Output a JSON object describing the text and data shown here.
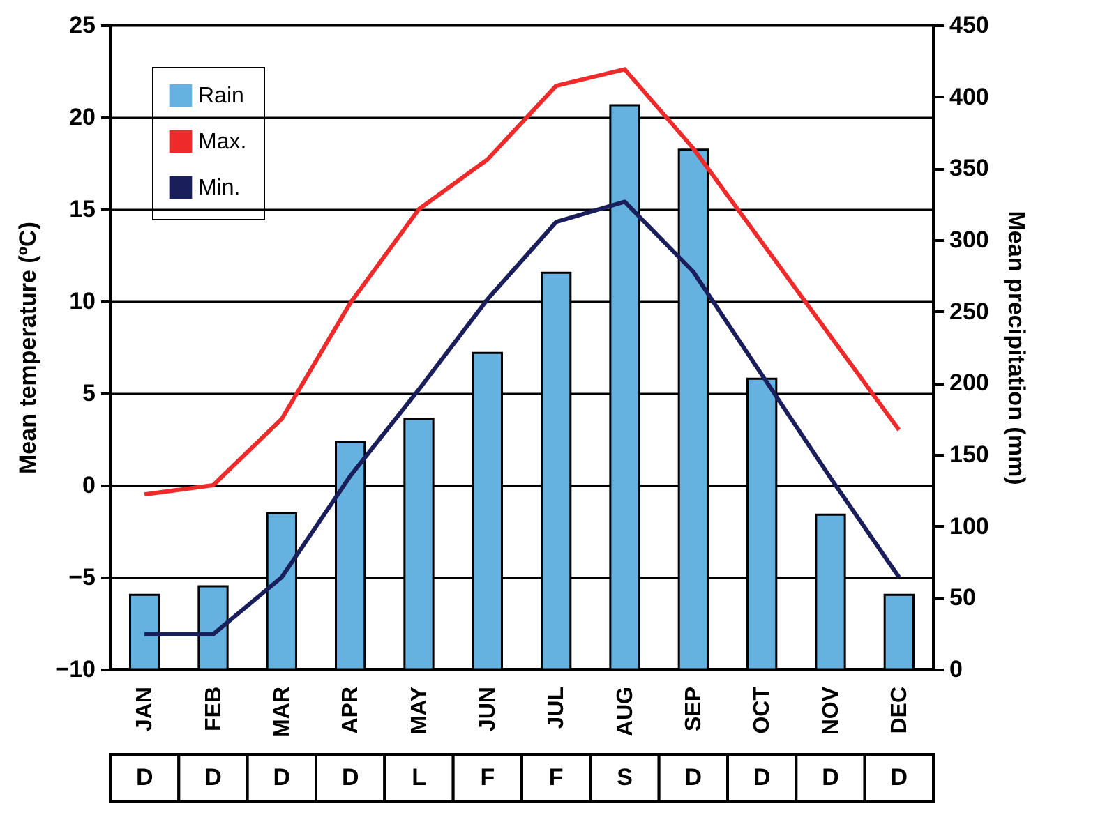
{
  "chart_data": {
    "type": "bar",
    "ylabel": "Mean temperature (ºC)",
    "y2label": "Mean precipitation (mm)",
    "categories": [
      "JAN",
      "FEB",
      "MAR",
      "APR",
      "MAY",
      "JUN",
      "JUL",
      "AUG",
      "SEP",
      "OCT",
      "NOV",
      "DEC"
    ],
    "series": [
      {
        "name": "Rain",
        "axis": "y2",
        "color": "#65b1df",
        "values": [
          52,
          58,
          109,
          159,
          175,
          221,
          277,
          394,
          363,
          203,
          108,
          52
        ]
      },
      {
        "name": "Max.",
        "type": "line",
        "color": "#ee2a2a",
        "values": [
          -0.5,
          0,
          3.6,
          9.9,
          15,
          17.7,
          21.7,
          22.6,
          18.3,
          13.2,
          8.1,
          3
        ]
      },
      {
        "name": "Min.",
        "type": "line",
        "color": "#1a1f5c",
        "values": [
          -8.1,
          -8.1,
          -5,
          0.5,
          5.2,
          10.1,
          14.3,
          15.4,
          11.6,
          6,
          0.4,
          -5
        ]
      }
    ],
    "ylim": [
      -10,
      25
    ],
    "yticks": [
      -10,
      -5,
      0,
      5,
      10,
      15,
      20,
      25
    ],
    "y2lim": [
      0,
      450
    ],
    "y2ticks": [
      0,
      50,
      100,
      150,
      200,
      250,
      300,
      350,
      400,
      450
    ],
    "grid": "y",
    "legend": "top left",
    "annotations": [
      "D",
      "D",
      "D",
      "D",
      "L",
      "F",
      "F",
      "S",
      "D",
      "D",
      "D",
      "D"
    ]
  }
}
